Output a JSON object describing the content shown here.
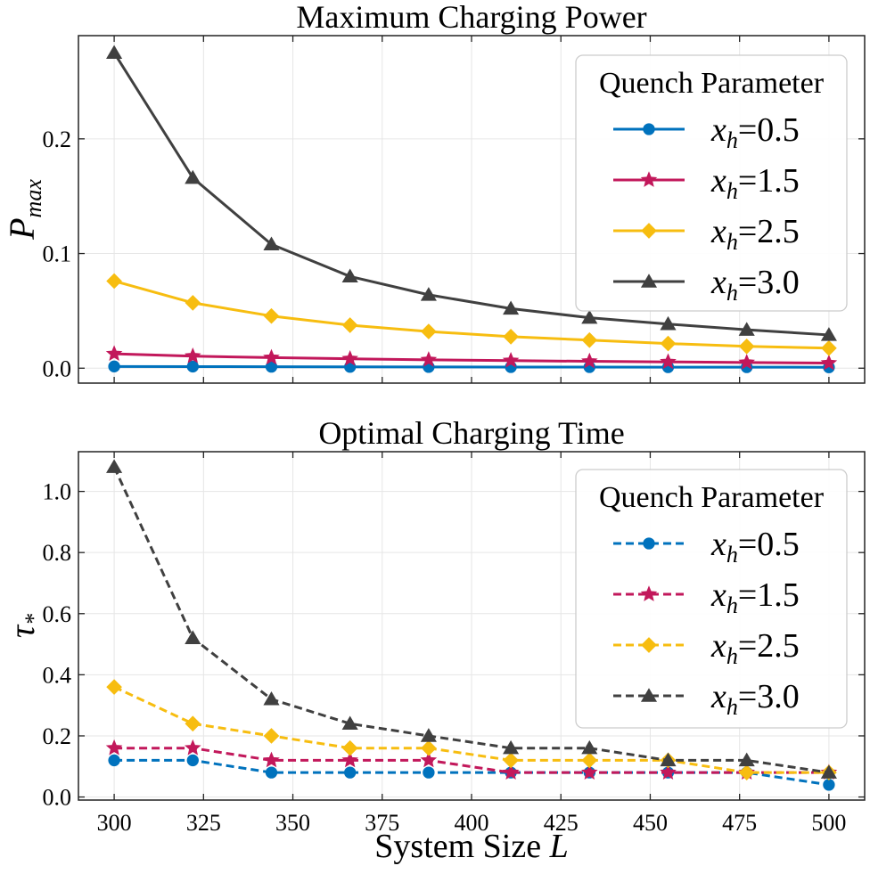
{
  "chart_data": [
    {
      "type": "line",
      "title": "Maximum Charging Power",
      "ylabel": "P_max",
      "ylabel_main": "P",
      "ylabel_sub": "max",
      "xlabel": "",
      "xlim": [
        290,
        510
      ],
      "ylim": [
        -0.013,
        0.29
      ],
      "xticks": [
        300,
        325,
        350,
        375,
        400,
        425,
        450,
        475,
        500
      ],
      "xtick_labels_shown": false,
      "yticks": [
        0.0,
        0.1,
        0.2
      ],
      "ytick_labels": [
        "0.0",
        "0.1",
        "0.2"
      ],
      "grid": true,
      "line_style": "solid",
      "x": [
        300,
        322,
        344,
        366,
        388,
        411,
        433,
        455,
        477,
        500
      ],
      "legend": {
        "title": "Quench Parameter",
        "placement": "top-right",
        "entries": [
          "x_h=0.5",
          "x_h=1.5",
          "x_h=2.5",
          "x_h=3.0"
        ]
      },
      "series": [
        {
          "name": "x_h=0.5",
          "label_main": "x",
          "label_sub": "h",
          "label_value": "=0.5",
          "color": "#0072BD",
          "marker": "circle",
          "values": [
            0.0015,
            0.0014,
            0.0013,
            0.0012,
            0.0011,
            0.001,
            0.001,
            0.0009,
            0.0009,
            0.0008
          ]
        },
        {
          "name": "x_h=1.5",
          "label_main": "x",
          "label_sub": "h",
          "label_value": "=1.5",
          "color": "#C2185B",
          "marker": "star",
          "values": [
            0.0125,
            0.0105,
            0.0092,
            0.0082,
            0.0073,
            0.0066,
            0.006,
            0.0055,
            0.005,
            0.0045
          ]
        },
        {
          "name": "x_h=2.5",
          "label_main": "x",
          "label_sub": "h",
          "label_value": "=2.5",
          "color": "#F7BD10",
          "marker": "diamond",
          "values": [
            0.076,
            0.057,
            0.0455,
            0.0375,
            0.032,
            0.0275,
            0.0245,
            0.0215,
            0.019,
            0.0175
          ]
        },
        {
          "name": "x_h=3.0",
          "label_main": "x",
          "label_sub": "h",
          "label_value": "=3.0",
          "color": "#404040",
          "marker": "triangle",
          "values": [
            0.275,
            0.166,
            0.108,
            0.08,
            0.064,
            0.052,
            0.044,
            0.0385,
            0.0335,
            0.029
          ]
        }
      ]
    },
    {
      "type": "line",
      "title": "Optimal Charging Time",
      "ylabel": "τ_*",
      "ylabel_main": "τ",
      "ylabel_sub": "*",
      "xlabel": "System Size L",
      "xlabel_text": "System Size ",
      "xlabel_var": "L",
      "xlim": [
        290,
        510
      ],
      "ylim": [
        -0.01,
        1.13
      ],
      "xticks": [
        300,
        325,
        350,
        375,
        400,
        425,
        450,
        475,
        500
      ],
      "xtick_labels": [
        "300",
        "325",
        "350",
        "375",
        "400",
        "425",
        "450",
        "475",
        "500"
      ],
      "yticks": [
        0.0,
        0.2,
        0.4,
        0.6,
        0.8,
        1.0
      ],
      "ytick_labels": [
        "0.0",
        "0.2",
        "0.4",
        "0.6",
        "0.8",
        "1.0"
      ],
      "grid": true,
      "line_style": "dashed",
      "x": [
        300,
        322,
        344,
        366,
        388,
        411,
        433,
        455,
        477,
        500
      ],
      "legend": {
        "title": "Quench Parameter",
        "placement": "top-right",
        "entries": [
          "x_h=0.5",
          "x_h=1.5",
          "x_h=2.5",
          "x_h=3.0"
        ]
      },
      "series": [
        {
          "name": "x_h=0.5",
          "label_main": "x",
          "label_sub": "h",
          "label_value": "=0.5",
          "color": "#0072BD",
          "marker": "circle",
          "values": [
            0.12,
            0.12,
            0.08,
            0.08,
            0.08,
            0.08,
            0.08,
            0.08,
            0.08,
            0.04
          ]
        },
        {
          "name": "x_h=1.5",
          "label_main": "x",
          "label_sub": "h",
          "label_value": "=1.5",
          "color": "#C2185B",
          "marker": "star",
          "values": [
            0.16,
            0.16,
            0.12,
            0.12,
            0.12,
            0.08,
            0.08,
            0.08,
            0.08,
            0.08
          ]
        },
        {
          "name": "x_h=2.5",
          "label_main": "x",
          "label_sub": "h",
          "label_value": "=2.5",
          "color": "#F7BD10",
          "marker": "diamond",
          "values": [
            0.36,
            0.24,
            0.2,
            0.16,
            0.16,
            0.12,
            0.12,
            0.12,
            0.08,
            0.08
          ]
        },
        {
          "name": "x_h=3.0",
          "label_main": "x",
          "label_sub": "h",
          "label_value": "=3.0",
          "color": "#404040",
          "marker": "triangle",
          "values": [
            1.08,
            0.52,
            0.32,
            0.24,
            0.2,
            0.16,
            0.16,
            0.12,
            0.12,
            0.08
          ]
        }
      ]
    }
  ]
}
